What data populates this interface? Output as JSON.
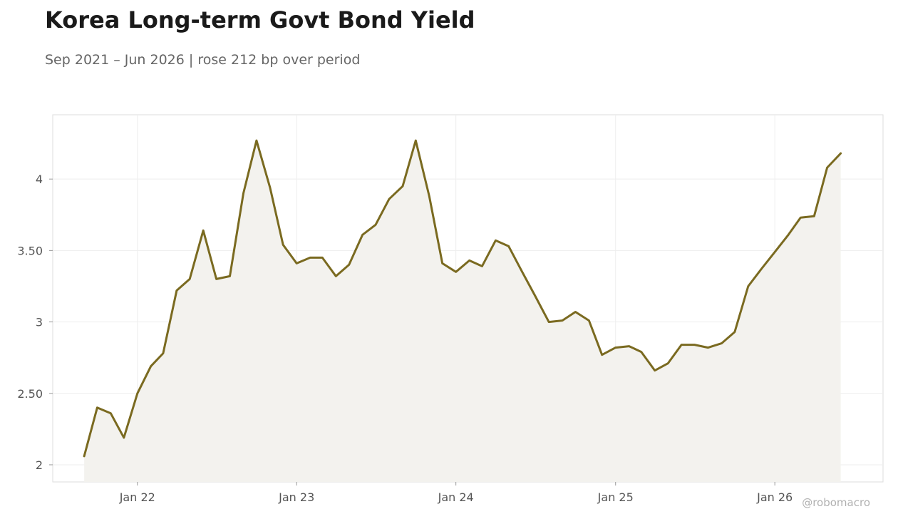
{
  "header": {
    "title": "Korea Long-term Govt Bond Yield",
    "subtitle": "Sep 2021 – Jun 2026 | rose 212 bp over period"
  },
  "watermark": "@robomacro",
  "colors": {
    "line": "#7a6a20",
    "area": "#f3f2ee",
    "grid": "#eeeeee",
    "frame": "#dddddd"
  },
  "chart_data": {
    "type": "area",
    "title": "Korea Long-term Govt Bond Yield",
    "subtitle": "Sep 2021 – Jun 2026 | rose 212 bp over period",
    "xlabel": "",
    "ylabel": "",
    "xlim": [
      "2021-06-21",
      "2026-09-06"
    ],
    "ylim": [
      1.88,
      4.45
    ],
    "grid": true,
    "x_ticks": [
      {
        "date": "2022-01-01",
        "label": "Jan 22"
      },
      {
        "date": "2023-01-01",
        "label": "Jan 23"
      },
      {
        "date": "2024-01-01",
        "label": "Jan 24"
      },
      {
        "date": "2025-01-01",
        "label": "Jan 25"
      },
      {
        "date": "2026-01-01",
        "label": "Jan 26"
      }
    ],
    "y_ticks": [
      {
        "value": 2,
        "label": "2"
      },
      {
        "value": 2.5,
        "label": "2.50"
      },
      {
        "value": 3,
        "label": "3"
      },
      {
        "value": 3.5,
        "label": "3.50"
      },
      {
        "value": 4,
        "label": "4"
      }
    ],
    "series": [
      {
        "x": [
          "2021-09",
          "2021-10",
          "2021-11",
          "2021-12",
          "2022-01",
          "2022-02",
          "2022-03",
          "2022-04",
          "2022-05",
          "2022-06",
          "2022-07",
          "2022-08",
          "2022-09",
          "2022-10",
          "2022-11",
          "2022-12",
          "2023-01",
          "2023-02",
          "2023-03",
          "2023-04",
          "2023-05",
          "2023-06",
          "2023-07",
          "2023-08",
          "2023-09",
          "2023-10",
          "2023-11",
          "2023-12",
          "2024-01",
          "2024-02",
          "2024-03",
          "2024-04",
          "2024-05",
          "2024-06",
          "2024-07",
          "2024-08",
          "2024-09",
          "2024-10",
          "2024-11",
          "2024-12",
          "2025-01",
          "2025-02",
          "2025-03",
          "2025-04",
          "2025-05",
          "2025-06",
          "2025-07",
          "2025-08",
          "2025-09",
          "2025-10",
          "2025-11",
          "2025-12",
          "2026-01",
          "2026-02",
          "2026-03",
          "2026-04",
          "2026-05",
          "2026-06"
        ],
        "values": [
          2.06,
          2.4,
          2.36,
          2.19,
          2.5,
          2.69,
          2.78,
          3.22,
          3.3,
          3.64,
          3.3,
          3.32,
          3.9,
          4.27,
          3.94,
          3.54,
          3.41,
          3.45,
          3.45,
          3.32,
          3.4,
          3.61,
          3.68,
          3.86,
          3.95,
          4.27,
          3.88,
          3.41,
          3.35,
          3.43,
          3.39,
          3.57,
          3.53,
          3.35,
          3.18,
          3.0,
          3.01,
          3.07,
          3.01,
          2.77,
          2.82,
          2.83,
          2.79,
          2.66,
          2.71,
          2.84,
          2.84,
          2.82,
          2.85,
          2.93,
          3.25,
          3.37,
          3.49,
          3.61,
          3.73,
          3.74,
          4.08,
          4.18
        ]
      }
    ]
  }
}
